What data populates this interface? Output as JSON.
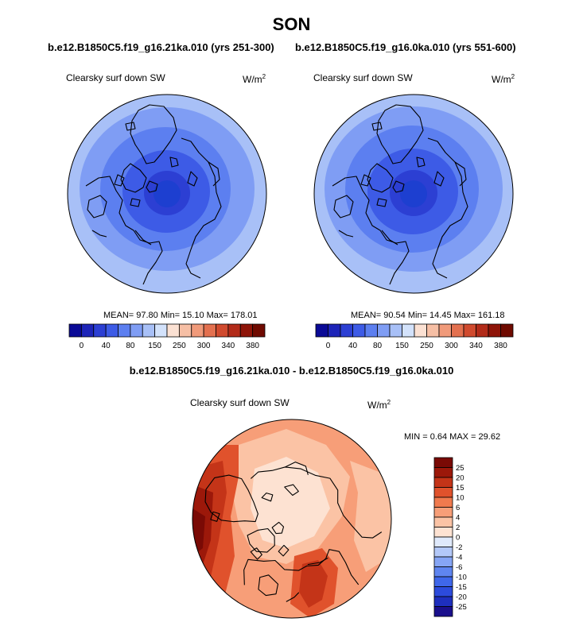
{
  "figure": {
    "season": "SON",
    "case_left": "b.e12.B1850C5.f19_g16.21ka.010 (yrs 251-300)",
    "case_right": "b.e12.B1850C5.f19_g16.0ka.010 (yrs 551-600)",
    "diff_title": "b.e12.B1850C5.f19_g16.21ka.010 - b.e12.B1850C5.f19_g16.0ka.010"
  },
  "panels": {
    "left": {
      "title": "Clearsky surf down SW",
      "units_base": "W/m",
      "units_exp": "2",
      "stats": "MEAN=  97.80  Min=  15.10  Max= 178.01"
    },
    "right": {
      "title": "Clearsky surf down SW",
      "units_base": "W/m",
      "units_exp": "2",
      "stats": "MEAN=  90.54  Min=  14.45  Max= 161.18"
    },
    "diff": {
      "title": "Clearsky surf down SW",
      "units_base": "W/m",
      "units_exp": "2",
      "stats": "MIN =   0.64 MAX =  29.62"
    }
  },
  "chart_data": [
    {
      "type": "heatmap",
      "projection": "north polar stereographic",
      "title": "Clearsky surf down SW",
      "units": "W/m2",
      "summary": {
        "mean": 97.8,
        "min": 15.1,
        "max": 178.01
      },
      "levels": [
        0,
        20,
        40,
        60,
        80,
        100,
        150,
        200,
        250,
        280,
        300,
        320,
        340,
        360,
        380
      ],
      "tick_labels": [
        "0",
        "40",
        "80",
        "150",
        "250",
        "300",
        "340",
        "380"
      ],
      "colors": [
        "#0a0a96",
        "#1d24b8",
        "#2c3fd3",
        "#3d5be6",
        "#5c7ff0",
        "#7f9df4",
        "#a8c0f7",
        "#d3e2fb",
        "#fbe1d3",
        "#f6bfa5",
        "#f09a7a",
        "#e3704f",
        "#d04a2e",
        "#b22b19",
        "#8e1408",
        "#6f0a00"
      ],
      "contour_bands": [
        {
          "min": 15,
          "max": 60,
          "color": "#1d3fd0"
        },
        {
          "min": 60,
          "max": 80,
          "color": "#3d5be6"
        },
        {
          "min": 80,
          "max": 100,
          "color": "#5c7ff0"
        },
        {
          "min": 100,
          "max": 150,
          "color": "#7f9df4"
        },
        {
          "min": 150,
          "max": 178,
          "color": "#a8c0f7"
        }
      ]
    },
    {
      "type": "heatmap",
      "projection": "north polar stereographic",
      "title": "Clearsky surf down SW",
      "units": "W/m2",
      "summary": {
        "mean": 90.54,
        "min": 14.45,
        "max": 161.18
      },
      "levels": [
        0,
        20,
        40,
        60,
        80,
        100,
        150,
        200,
        250,
        280,
        300,
        320,
        340,
        360,
        380
      ],
      "tick_labels": [
        "0",
        "40",
        "80",
        "150",
        "250",
        "300",
        "340",
        "380"
      ],
      "colors": [
        "#0a0a96",
        "#1d24b8",
        "#2c3fd3",
        "#3d5be6",
        "#5c7ff0",
        "#7f9df4",
        "#a8c0f7",
        "#d3e2fb",
        "#fbe1d3",
        "#f6bfa5",
        "#f09a7a",
        "#e3704f",
        "#d04a2e",
        "#b22b19",
        "#8e1408",
        "#6f0a00"
      ],
      "contour_bands": [
        {
          "min": 14,
          "max": 60,
          "color": "#1d3fd0"
        },
        {
          "min": 60,
          "max": 80,
          "color": "#3d5be6"
        },
        {
          "min": 80,
          "max": 100,
          "color": "#5c7ff0"
        },
        {
          "min": 100,
          "max": 150,
          "color": "#7f9df4"
        },
        {
          "min": 150,
          "max": 161,
          "color": "#a8c0f7"
        }
      ]
    },
    {
      "type": "heatmap",
      "projection": "north polar stereographic",
      "title": "Clearsky surf down SW",
      "units": "W/m2",
      "summary": {
        "min": 0.64,
        "max": 29.62
      },
      "levels": [
        -25,
        -20,
        -15,
        -10,
        -6,
        -4,
        -2,
        0,
        2,
        4,
        6,
        10,
        15,
        20,
        25
      ],
      "tick_labels": [
        "25",
        "20",
        "15",
        "10",
        "6",
        "4",
        "2",
        "0",
        "-2",
        "-4",
        "-6",
        "-10",
        "-15",
        "-20",
        "-25"
      ],
      "colors": [
        "#1a0f8c",
        "#1e2fbe",
        "#2c4bdc",
        "#3f67ea",
        "#5f85f0",
        "#86a5f5",
        "#b3c8f8",
        "#dfe9fb",
        "#fde2d2",
        "#fbc3a5",
        "#f79e78",
        "#f07a4e",
        "#e0522c",
        "#c43418",
        "#9c180a",
        "#7a0a05"
      ],
      "contour_bands": [
        {
          "min": 0,
          "max": 2,
          "color": "#fde2d2"
        },
        {
          "min": 2,
          "max": 4,
          "color": "#fbc3a5"
        },
        {
          "min": 4,
          "max": 6,
          "color": "#f79e78"
        },
        {
          "min": 6,
          "max": 10,
          "color": "#f07a4e"
        },
        {
          "min": 10,
          "max": 15,
          "color": "#e0522c"
        },
        {
          "min": 15,
          "max": 20,
          "color": "#c43418"
        },
        {
          "min": 20,
          "max": 25,
          "color": "#9c180a"
        },
        {
          "min": 25,
          "max": 30,
          "color": "#7a0a05"
        }
      ]
    }
  ]
}
